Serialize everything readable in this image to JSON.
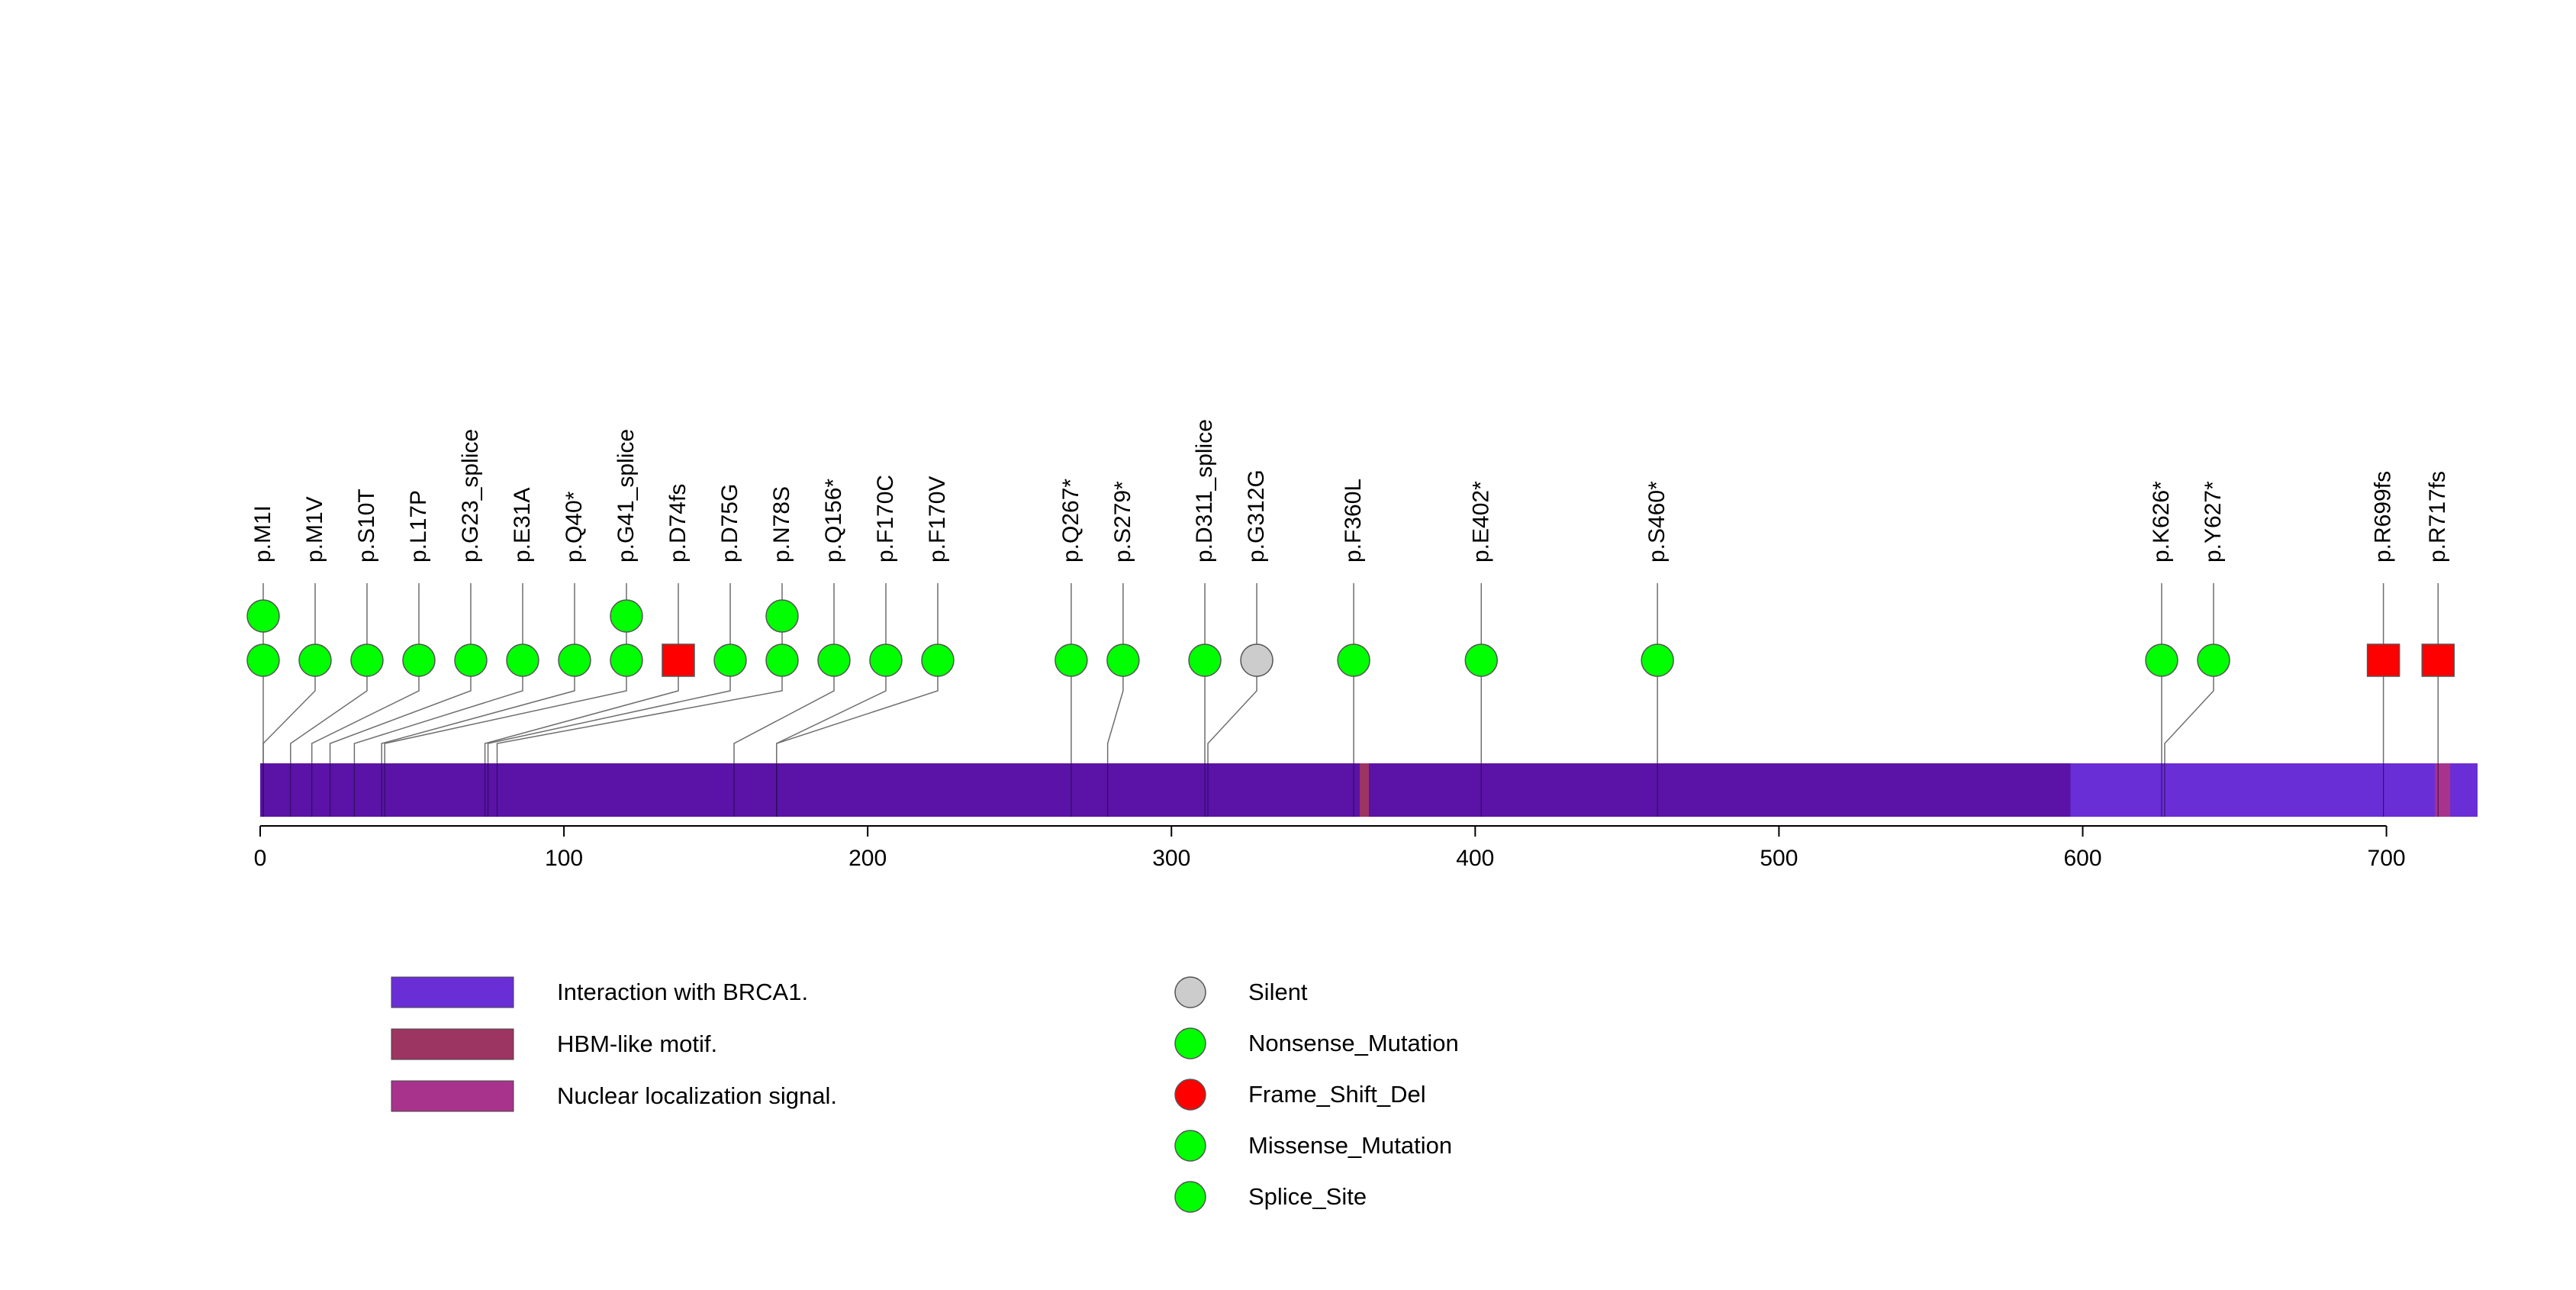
{
  "chart_data": {
    "type": "lollipop",
    "axis": {
      "min": 0,
      "max": 730,
      "ticks": [
        0,
        100,
        200,
        300,
        400,
        500,
        600,
        700
      ]
    },
    "protein_length": 730,
    "domains": [
      {
        "name": "Interaction with BRCA1.",
        "start": 596,
        "end": 730,
        "color": "#6a2ed6"
      },
      {
        "name": "HBM-like motif.",
        "start": 362,
        "end": 365,
        "color": "#9c3562"
      },
      {
        "name": "Nuclear localization signal.",
        "start": 716,
        "end": 721,
        "color": "#a8338c"
      }
    ],
    "mutations": [
      {
        "label": "p.M1I",
        "position": 1,
        "type": "Nonsense_Mutation",
        "count": 2
      },
      {
        "label": "p.M1V",
        "position": 1,
        "type": "Nonsense_Mutation",
        "count": 1
      },
      {
        "label": "p.S10T",
        "position": 10,
        "type": "Nonsense_Mutation",
        "count": 1
      },
      {
        "label": "p.L17P",
        "position": 17,
        "type": "Nonsense_Mutation",
        "count": 1
      },
      {
        "label": "p.G23_splice",
        "position": 23,
        "type": "Nonsense_Mutation",
        "count": 1
      },
      {
        "label": "p.E31A",
        "position": 31,
        "type": "Nonsense_Mutation",
        "count": 1
      },
      {
        "label": "p.Q40*",
        "position": 40,
        "type": "Nonsense_Mutation",
        "count": 1
      },
      {
        "label": "p.G41_splice",
        "position": 41,
        "type": "Nonsense_Mutation",
        "count": 2
      },
      {
        "label": "p.D74fs",
        "position": 74,
        "type": "Frame_Shift_Del",
        "count": 1
      },
      {
        "label": "p.D75G",
        "position": 75,
        "type": "Nonsense_Mutation",
        "count": 1
      },
      {
        "label": "p.N78S",
        "position": 78,
        "type": "Nonsense_Mutation",
        "count": 2
      },
      {
        "label": "p.Q156*",
        "position": 156,
        "type": "Nonsense_Mutation",
        "count": 1
      },
      {
        "label": "p.F170C",
        "position": 170,
        "type": "Nonsense_Mutation",
        "count": 1
      },
      {
        "label": "p.F170V",
        "position": 170,
        "type": "Nonsense_Mutation",
        "count": 1
      },
      {
        "label": "p.Q267*",
        "position": 267,
        "type": "Nonsense_Mutation",
        "count": 1
      },
      {
        "label": "p.S279*",
        "position": 279,
        "type": "Nonsense_Mutation",
        "count": 1
      },
      {
        "label": "p.D311_splice",
        "position": 311,
        "type": "Nonsense_Mutation",
        "count": 1
      },
      {
        "label": "p.G312G",
        "position": 312,
        "type": "Silent",
        "count": 1
      },
      {
        "label": "p.F360L",
        "position": 360,
        "type": "Nonsense_Mutation",
        "count": 1
      },
      {
        "label": "p.E402*",
        "position": 402,
        "type": "Nonsense_Mutation",
        "count": 1
      },
      {
        "label": "p.S460*",
        "position": 460,
        "type": "Nonsense_Mutation",
        "count": 1
      },
      {
        "label": "p.K626*",
        "position": 626,
        "type": "Nonsense_Mutation",
        "count": 1
      },
      {
        "label": "p.Y627*",
        "position": 627,
        "type": "Nonsense_Mutation",
        "count": 1
      },
      {
        "label": "p.R699fs",
        "position": 699,
        "type": "Frame_Shift_Del",
        "count": 1
      },
      {
        "label": "p.R717fs",
        "position": 717,
        "type": "Frame_Shift_Del",
        "count": 1
      }
    ],
    "legend_domains": [
      {
        "label": "Interaction with BRCA1.",
        "color": "#6a2ed6"
      },
      {
        "label": "HBM-like motif.",
        "color": "#9c3562"
      },
      {
        "label": "Nuclear localization signal.",
        "color": "#a8338c"
      }
    ],
    "legend_mutations": [
      {
        "label": "Silent",
        "color": "#cccccc",
        "shape": "circle"
      },
      {
        "label": "Nonsense_Mutation",
        "color": "#00ff00",
        "shape": "circle"
      },
      {
        "label": "Frame_Shift_Del",
        "color": "#ff0000",
        "shape": "circle"
      },
      {
        "label": "Missense_Mutation",
        "color": "#00ff00",
        "shape": "circle"
      },
      {
        "label": "Splice_Site",
        "color": "#00ff00",
        "shape": "circle"
      }
    ],
    "colors": {
      "backbone": "#5a13a6",
      "Silent": "#cccccc",
      "Nonsense_Mutation": "#00ff00",
      "Frame_Shift_Del": "#ff0000"
    }
  }
}
